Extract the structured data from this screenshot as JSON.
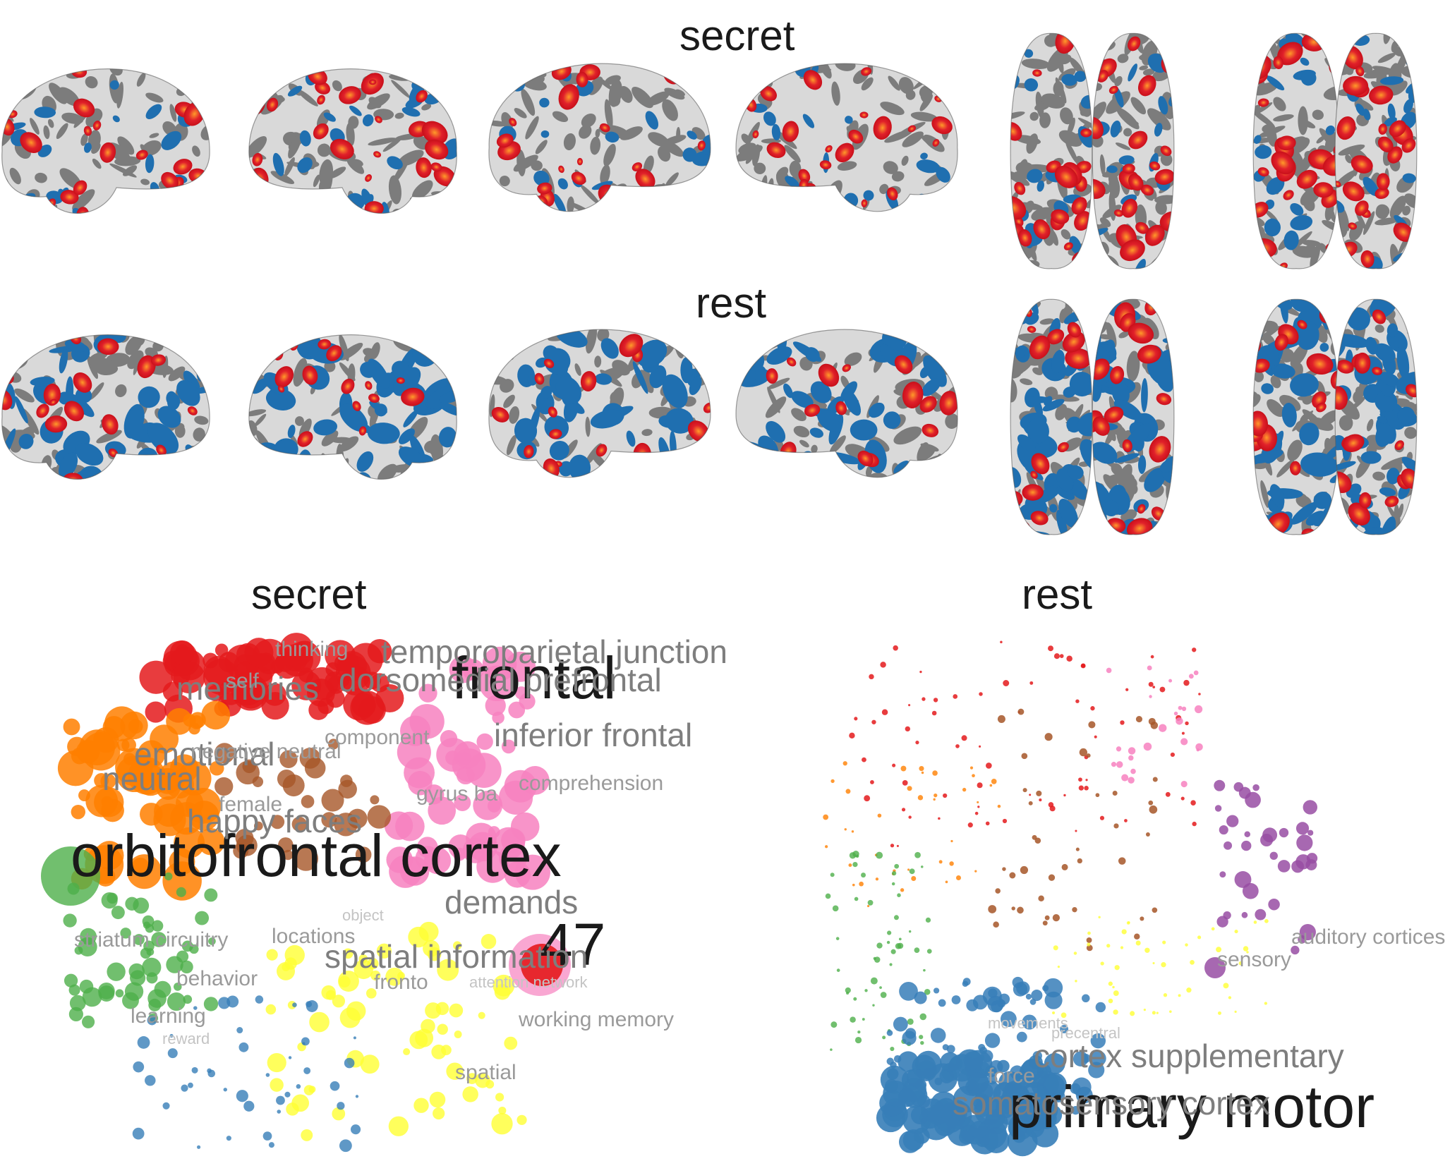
{
  "brain_rows": [
    {
      "title": "secret"
    },
    {
      "title": "rest"
    }
  ],
  "panels": [
    {
      "title": "secret",
      "word_labels": [
        {
          "text": "frontal",
          "tier": "big"
        },
        {
          "text": "orbitofrontal cortex",
          "tier": "big"
        },
        {
          "text": "47",
          "tier": "big"
        },
        {
          "text": "memories",
          "tier": "mid"
        },
        {
          "text": "neutral",
          "tier": "mid"
        },
        {
          "text": "dorsomedial prefrontal",
          "tier": "mid"
        },
        {
          "text": "inferior frontal",
          "tier": "mid"
        },
        {
          "text": "temporoparietal junction",
          "tier": "mid"
        },
        {
          "text": "emotional",
          "tier": "mid"
        },
        {
          "text": "happy faces",
          "tier": "mid"
        },
        {
          "text": "demands",
          "tier": "mid"
        },
        {
          "text": "spatial information",
          "tier": "mid"
        },
        {
          "text": "comprehension",
          "tier": "small"
        },
        {
          "text": "gyrus ba",
          "tier": "small"
        },
        {
          "text": "component",
          "tier": "small"
        },
        {
          "text": "negative neutral",
          "tier": "small"
        },
        {
          "text": "female",
          "tier": "small"
        },
        {
          "text": "self",
          "tier": "small"
        },
        {
          "text": "thinking",
          "tier": "small"
        },
        {
          "text": "locations",
          "tier": "small"
        },
        {
          "text": "striatum circuitry",
          "tier": "small"
        },
        {
          "text": "behavior",
          "tier": "small"
        },
        {
          "text": "fronto",
          "tier": "small"
        },
        {
          "text": "working memory",
          "tier": "small"
        },
        {
          "text": "spatial",
          "tier": "small"
        },
        {
          "text": "learning",
          "tier": "small"
        },
        {
          "text": "object",
          "tier": "faint"
        },
        {
          "text": "attention network",
          "tier": "faint"
        },
        {
          "text": "reward",
          "tier": "faint"
        }
      ]
    },
    {
      "title": "rest",
      "word_labels": [
        {
          "text": "primary motor",
          "tier": "big"
        },
        {
          "text": "somatosensory cortex",
          "tier": "mid"
        },
        {
          "text": "cortex supplementary",
          "tier": "mid"
        },
        {
          "text": "auditory cortices",
          "tier": "small"
        },
        {
          "text": "sensory",
          "tier": "small"
        },
        {
          "text": "force",
          "tier": "small"
        },
        {
          "text": "precentral",
          "tier": "faint"
        },
        {
          "text": "movements",
          "tier": "faint"
        }
      ]
    }
  ],
  "colors": {
    "activation": "#e0202a",
    "activation_core": "#ff9a2a",
    "deactivation": "#1f6fb0",
    "sulcus": "#7c7c7c",
    "gyrus": "#d9d9d9",
    "cluster_red": "#e41a1c",
    "cluster_orange": "#ff7f00",
    "cluster_pink": "#f781bf",
    "cluster_brown": "#a65628",
    "cluster_green": "#4daf4a",
    "cluster_blue": "#377eb8",
    "cluster_yellow": "#ffff33",
    "cluster_purple": "#984ea3"
  }
}
